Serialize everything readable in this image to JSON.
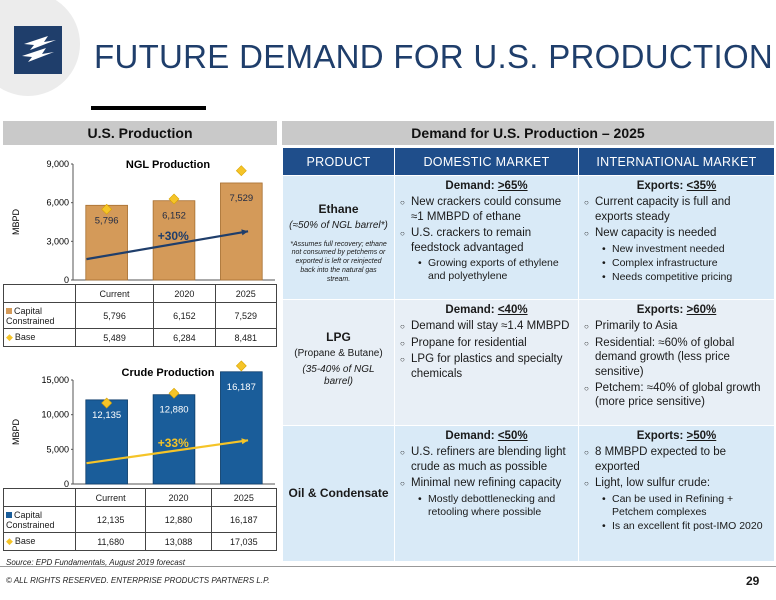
{
  "slide": {
    "title": "FUTURE DEMAND FOR U.S. PRODUCTION",
    "left_header": "U.S. Production",
    "right_header": "Demand for U.S. Production – 2025",
    "source": "Source: EPD Fundamentals, August 2019 forecast",
    "footer": "© ALL RIGHTS RESERVED. ENTERPRISE PRODUCTS PARTNERS L.P.",
    "page_number": "29",
    "colors": {
      "navy": "#1f3e6b",
      "table_header": "#1f4e8b",
      "cell": "#d9eaf7",
      "ngl_bar": "#d49a59",
      "crude_bar": "#1a5d9a",
      "base_marker": "#f5c428"
    }
  },
  "chart_data": [
    {
      "type": "bar",
      "title": "NGL Production",
      "ylabel": "MBPD",
      "categories": [
        "Current",
        "2020",
        "2025"
      ],
      "ylim": [
        0,
        9000
      ],
      "yticks": [
        "0",
        "3,000",
        "6,000",
        "9,000"
      ],
      "series": [
        {
          "name": "Capital Constrained",
          "values": [
            5796,
            6152,
            7529
          ],
          "labels": [
            "5,796",
            "6,152",
            "7,529"
          ]
        },
        {
          "name": "Base",
          "values": [
            5489,
            6284,
            8481
          ],
          "labels": [
            "5,489",
            "6,284",
            "8,481"
          ]
        }
      ],
      "growth_label": "+30%"
    },
    {
      "type": "bar",
      "title": "Crude Production",
      "ylabel": "MBPD",
      "categories": [
        "Current",
        "2020",
        "2025"
      ],
      "ylim": [
        0,
        15000
      ],
      "yticks": [
        "0",
        "5,000",
        "10,000",
        "15,000"
      ],
      "series": [
        {
          "name": "Capital Constrained",
          "values": [
            12135,
            12880,
            16187
          ],
          "labels": [
            "12,135",
            "12,880",
            "16,187"
          ]
        },
        {
          "name": "Base",
          "values": [
            11680,
            13088,
            17035
          ],
          "labels": [
            "11,680",
            "13,088",
            "17,035"
          ]
        }
      ],
      "growth_label": "+33%"
    }
  ],
  "ngl_table": {
    "cat": [
      "Current",
      "2020",
      "2025"
    ],
    "cc_label": "Capital Constrained",
    "cc": [
      "5,796",
      "6,152",
      "7,529"
    ],
    "base_label": "Base",
    "base": [
      "5,489",
      "6,284",
      "8,481"
    ]
  },
  "crude_table": {
    "cat": [
      "Current",
      "2020",
      "2025"
    ],
    "cc_label": "Capital Constrained",
    "cc": [
      "12,135",
      "12,880",
      "16,187"
    ],
    "base_label": "Base",
    "base": [
      "11,680",
      "13,088",
      "17,035"
    ]
  },
  "demand_table": {
    "headers": [
      "PRODUCT",
      "DOMESTIC MARKET",
      "INTERNATIONAL MARKET"
    ],
    "ethane": {
      "name": "Ethane",
      "sub": "(≈50% of NGL barrel*)",
      "note": "*Assumes full recovery; ethane not consumed by petchems or exported is left or reinjected back into the natural gas stream.",
      "dom_head_prefix": "Demand: ",
      "dom_head_value": ">65%",
      "dom_b1": "New crackers could consume ≈1 MMBPD of ethane",
      "dom_b2": "U.S. crackers to remain feedstock advantaged",
      "dom_s1": "Growing exports of ethylene and polyethylene",
      "int_head_prefix": "Exports: ",
      "int_head_value": "<35%",
      "int_b1": "Current capacity is full and exports steady",
      "int_b2": "New capacity is needed",
      "int_s1": "New investment needed",
      "int_s2": "Complex infrastructure",
      "int_s3": "Needs competitive pricing"
    },
    "lpg": {
      "name": "LPG",
      "sub": "(Propane & Butane)",
      "ital": "(35-40% of NGL barrel)",
      "dom_head_prefix": "Demand: ",
      "dom_head_value": "<40%",
      "dom_b1": "Demand will stay ≈1.4 MMBPD",
      "dom_b2": "Propane for residential",
      "dom_b3": "LPG for plastics and specialty chemicals",
      "int_head_prefix": "Exports: ",
      "int_head_value": ">60%",
      "int_b1": "Primarily to Asia",
      "int_b2": "Residential: ≈60% of global demand growth (less price sensitive)",
      "int_b3": "Petchem: ≈40% of global growth (more price sensitive)"
    },
    "oil": {
      "name": "Oil & Condensate",
      "dom_head_prefix": "Demand: ",
      "dom_head_value": "<50%",
      "dom_b1": "U.S. refiners are blending light crude as much as possible",
      "dom_b2": "Minimal new refining capacity",
      "dom_s1": "Mostly debottlenecking and retooling where possible",
      "int_head_prefix": "Exports: ",
      "int_head_value": ">50%",
      "int_b1": "8 MMBPD expected to be exported",
      "int_b2": "Light, low sulfur crude:",
      "int_s1": "Can be used in Refining + Petchem complexes",
      "int_s2": "Is an excellent fit post-IMO 2020"
    }
  }
}
